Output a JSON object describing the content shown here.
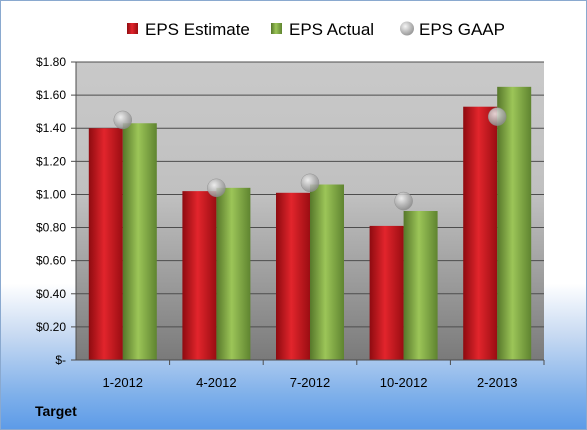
{
  "chart_data": {
    "type": "bar",
    "title": "",
    "xlabel": "",
    "ylabel": "",
    "categories": [
      "1-2012",
      "4-2012",
      "7-2012",
      "10-2012",
      "2-2013"
    ],
    "series": [
      {
        "name": "EPS Estimate",
        "kind": "bar",
        "color": "#c0141c",
        "values": [
          1.4,
          1.02,
          1.01,
          0.81,
          1.53
        ]
      },
      {
        "name": "EPS Actual",
        "kind": "bar",
        "color": "#7aa33c",
        "values": [
          1.43,
          1.04,
          1.06,
          0.9,
          1.65
        ]
      },
      {
        "name": "EPS GAAP",
        "kind": "marker",
        "color": "#a9a9a9",
        "values": [
          1.45,
          1.04,
          1.07,
          0.96,
          1.47
        ]
      }
    ],
    "ylim": [
      0,
      1.8
    ],
    "yticks": [
      {
        "value": 1.8,
        "label": "$1.80"
      },
      {
        "value": 1.6,
        "label": "$1.60"
      },
      {
        "value": 1.4,
        "label": "$1.40"
      },
      {
        "value": 1.2,
        "label": "$1.20"
      },
      {
        "value": 1.0,
        "label": "$1.00"
      },
      {
        "value": 0.8,
        "label": "$0.80"
      },
      {
        "value": 0.6,
        "label": "$0.60"
      },
      {
        "value": 0.4,
        "label": "$0.40"
      },
      {
        "value": 0.2,
        "label": "$0.20"
      },
      {
        "value": 0.0,
        "label": "$-"
      }
    ],
    "grid": true,
    "legend_position": "top"
  },
  "company_label": "Target"
}
